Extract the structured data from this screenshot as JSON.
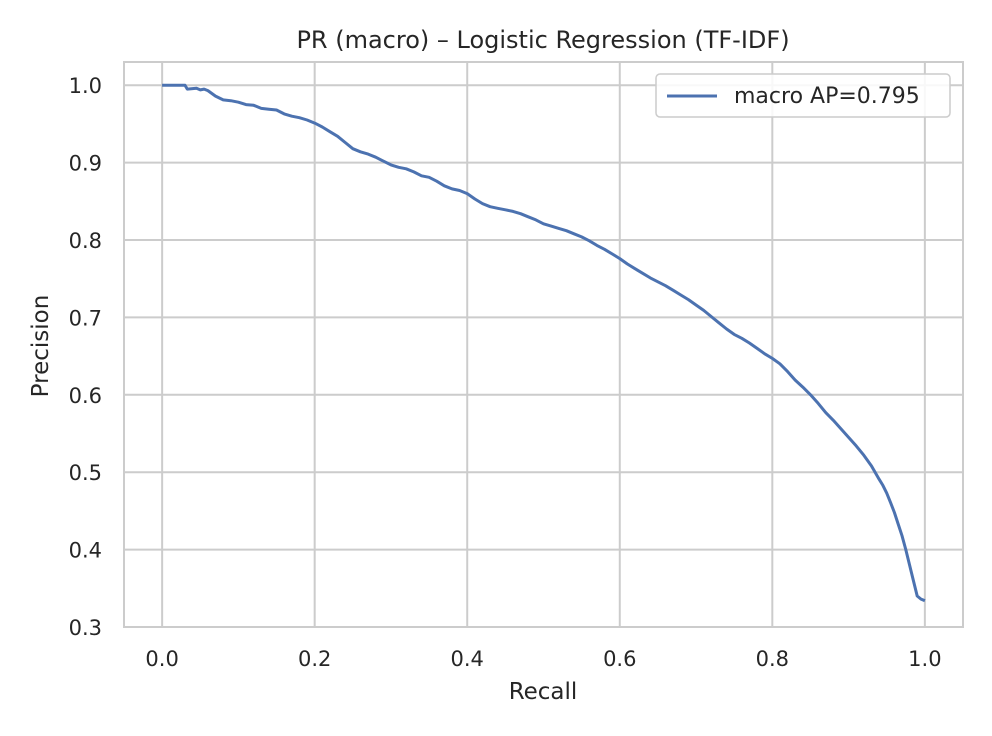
{
  "chart_data": {
    "type": "line",
    "title": "PR (macro) – Logistic Regression (TF-IDF)",
    "xlabel": "Recall",
    "ylabel": "Precision",
    "xlim": [
      -0.05,
      1.05
    ],
    "ylim": [
      0.3,
      1.03
    ],
    "xticks": [
      0.0,
      0.2,
      0.4,
      0.6,
      0.8,
      1.0
    ],
    "xtick_labels": [
      "0.0",
      "0.2",
      "0.4",
      "0.6",
      "0.8",
      "1.0"
    ],
    "yticks": [
      0.3,
      0.4,
      0.5,
      0.6,
      0.7,
      0.8,
      0.9,
      1.0
    ],
    "ytick_labels": [
      "0.3",
      "0.4",
      "0.5",
      "0.6",
      "0.7",
      "0.8",
      "0.9",
      "1.0"
    ],
    "grid": true,
    "legend_position": "top-right",
    "series": [
      {
        "name": "macro AP=0.795",
        "color": "#4c72b0",
        "x": [
          0.0,
          0.03,
          0.033,
          0.045,
          0.05,
          0.055,
          0.06,
          0.07,
          0.08,
          0.09,
          0.1,
          0.11,
          0.12,
          0.13,
          0.14,
          0.15,
          0.16,
          0.17,
          0.18,
          0.19,
          0.2,
          0.21,
          0.22,
          0.23,
          0.24,
          0.25,
          0.26,
          0.27,
          0.28,
          0.29,
          0.3,
          0.31,
          0.32,
          0.33,
          0.34,
          0.35,
          0.36,
          0.37,
          0.38,
          0.39,
          0.4,
          0.41,
          0.42,
          0.43,
          0.44,
          0.45,
          0.46,
          0.47,
          0.48,
          0.49,
          0.5,
          0.51,
          0.52,
          0.53,
          0.54,
          0.55,
          0.56,
          0.57,
          0.58,
          0.59,
          0.6,
          0.61,
          0.62,
          0.63,
          0.64,
          0.65,
          0.66,
          0.67,
          0.68,
          0.69,
          0.7,
          0.71,
          0.72,
          0.73,
          0.74,
          0.75,
          0.76,
          0.77,
          0.78,
          0.79,
          0.8,
          0.81,
          0.82,
          0.83,
          0.84,
          0.85,
          0.86,
          0.87,
          0.88,
          0.89,
          0.9,
          0.91,
          0.92,
          0.93,
          0.94,
          0.945,
          0.95,
          0.955,
          0.96,
          0.965,
          0.97,
          0.975,
          0.98,
          0.985,
          0.99,
          0.995,
          1.0
        ],
        "y": [
          1.0,
          1.0,
          0.995,
          0.996,
          0.994,
          0.995,
          0.993,
          0.986,
          0.981,
          0.98,
          0.978,
          0.975,
          0.974,
          0.97,
          0.969,
          0.968,
          0.963,
          0.96,
          0.958,
          0.955,
          0.951,
          0.946,
          0.94,
          0.934,
          0.926,
          0.918,
          0.914,
          0.911,
          0.907,
          0.902,
          0.897,
          0.894,
          0.892,
          0.888,
          0.883,
          0.881,
          0.876,
          0.87,
          0.866,
          0.864,
          0.86,
          0.853,
          0.847,
          0.843,
          0.841,
          0.839,
          0.837,
          0.834,
          0.83,
          0.826,
          0.821,
          0.818,
          0.815,
          0.812,
          0.808,
          0.804,
          0.799,
          0.793,
          0.788,
          0.782,
          0.776,
          0.769,
          0.763,
          0.757,
          0.751,
          0.746,
          0.741,
          0.735,
          0.729,
          0.723,
          0.716,
          0.709,
          0.701,
          0.693,
          0.685,
          0.678,
          0.673,
          0.667,
          0.66,
          0.653,
          0.647,
          0.64,
          0.63,
          0.619,
          0.61,
          0.6,
          0.589,
          0.577,
          0.567,
          0.556,
          0.545,
          0.534,
          0.522,
          0.508,
          0.491,
          0.483,
          0.473,
          0.461,
          0.448,
          0.433,
          0.418,
          0.4,
          0.38,
          0.36,
          0.34,
          0.336,
          0.334
        ]
      }
    ]
  }
}
